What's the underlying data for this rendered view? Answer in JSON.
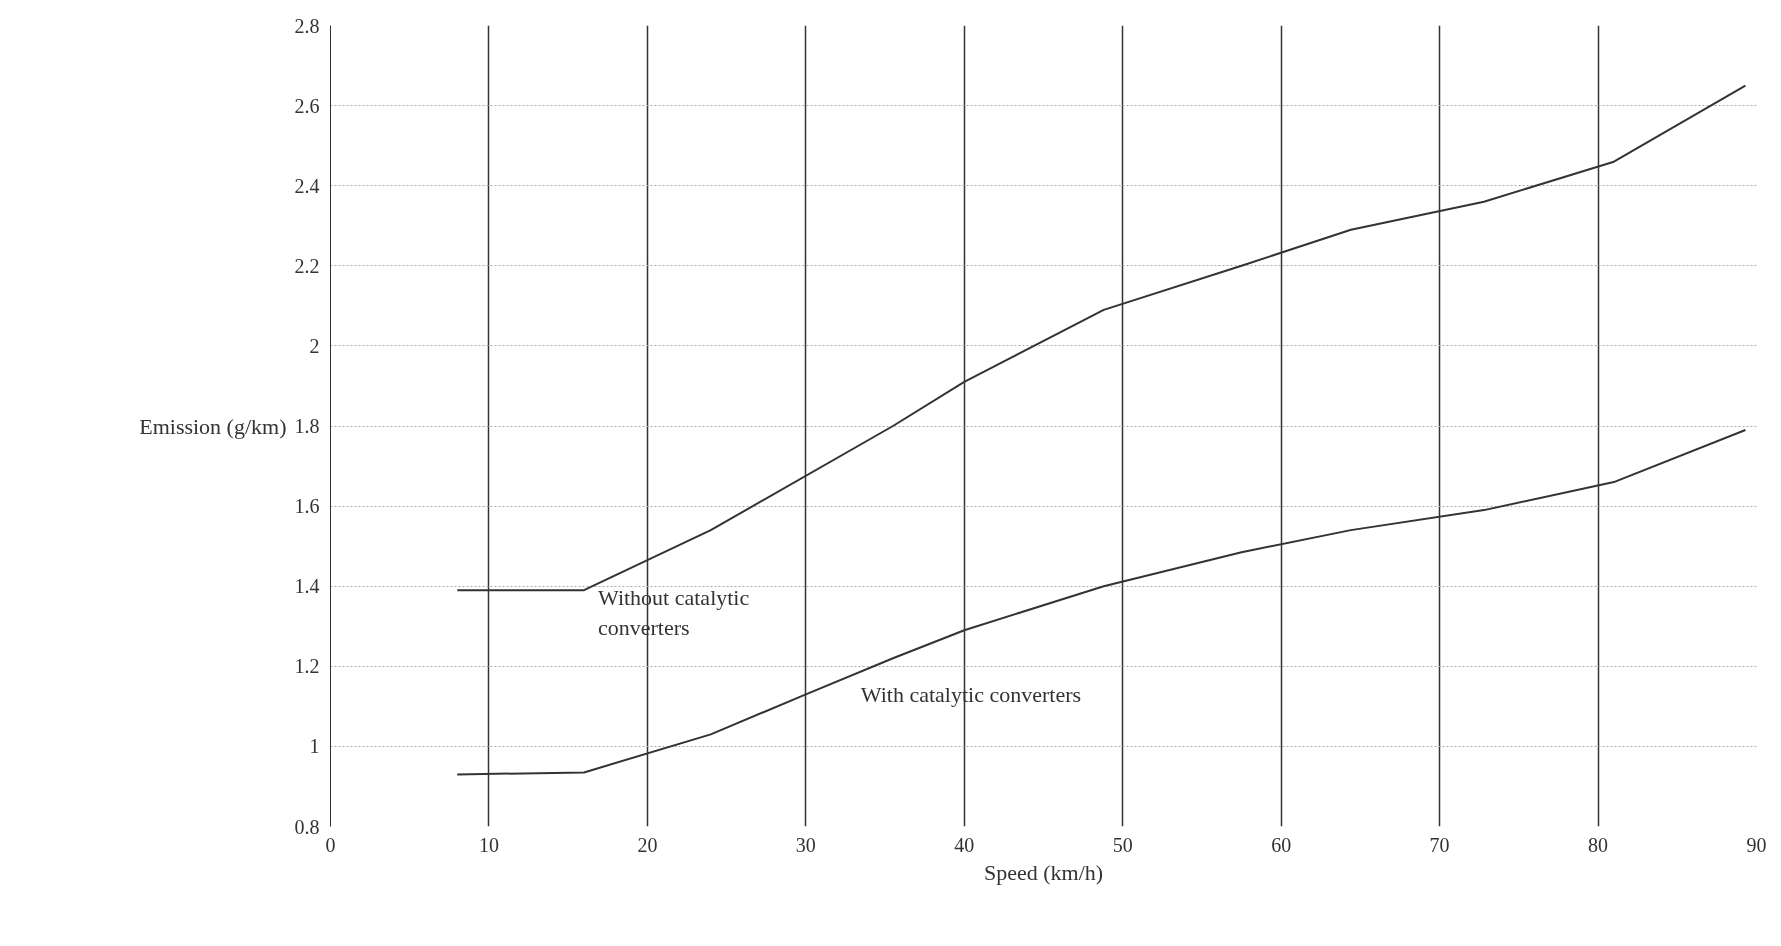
{
  "chart_data": {
    "type": "line",
    "xlabel": "Speed (km/h)",
    "ylabel": "Emission (g/km)",
    "xlim": [
      0,
      90
    ],
    "ylim": [
      0.8,
      2.8
    ],
    "xticks": [
      0,
      10,
      20,
      30,
      40,
      50,
      60,
      70,
      80,
      90
    ],
    "yticks": [
      0.8,
      1,
      1.2,
      1.4,
      1.6,
      1.8,
      2,
      2.2,
      2.4,
      2.6,
      2.8
    ],
    "grid": true,
    "marker": "none",
    "line_style": "solid",
    "series": [
      {
        "name": "Without catalytic\nconverters",
        "color": "#333333",
        "x": [
          8,
          16,
          24,
          35.5,
          40,
          48.8,
          57.5,
          64.4,
          72.8,
          81,
          89.3
        ],
        "values": [
          1.39,
          1.39,
          1.54,
          1.8,
          1.91,
          2.09,
          2.2,
          2.29,
          2.36,
          2.46,
          2.65
        ]
      },
      {
        "name": "With catalytic converters",
        "color": "#333333",
        "x": [
          8,
          16,
          24,
          30,
          35.5,
          40,
          48.8,
          57.5,
          64.4,
          72.8,
          81,
          89.3
        ],
        "values": [
          0.93,
          0.935,
          1.03,
          1.13,
          1.22,
          1.29,
          1.4,
          1.485,
          1.54,
          1.59,
          1.66,
          1.79
        ]
      }
    ]
  }
}
